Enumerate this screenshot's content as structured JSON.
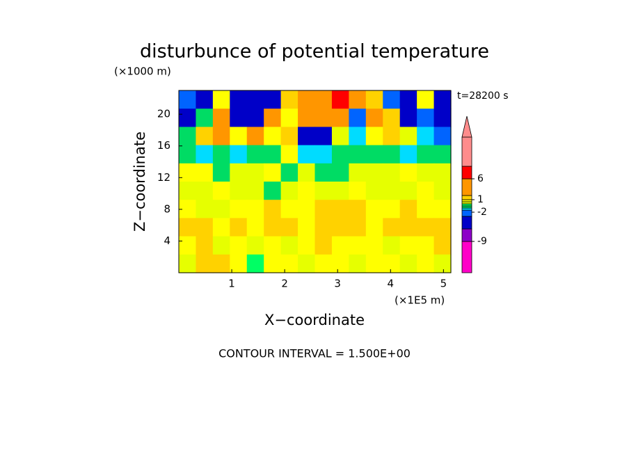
{
  "chart_data": {
    "type": "contour",
    "title": "disturbunce of potential temperature",
    "y_unit_label": "(×1000 m)",
    "x_unit_label": "(×1E5 m)",
    "x_label": "X−coordinate",
    "y_label": "Z−coordinate",
    "time_label": "t=28200 s",
    "footer": "CONTOUR INTERVAL = 1.500E+00",
    "xlim": [
      0,
      5.14
    ],
    "ylim": [
      0,
      23
    ],
    "xticks": [
      1,
      2,
      3,
      4,
      5
    ],
    "yticks": [
      4,
      8,
      12,
      16,
      20
    ],
    "z": [
      [
        -2,
        -4,
        0.7,
        -4,
        -6,
        -5,
        1,
        2,
        5,
        6,
        3,
        1,
        -3,
        -4,
        0.7,
        -4
      ],
      [
        -4,
        -1,
        2,
        -5,
        -4,
        2,
        0.7,
        3,
        5,
        4,
        -3,
        2,
        1,
        -4,
        -2,
        -6
      ],
      [
        -1,
        1,
        2,
        0.7,
        2,
        0.7,
        1,
        -4,
        -5,
        0.3,
        -1.2,
        0.7,
        1,
        0.3,
        -1.2,
        -2
      ],
      [
        -0.7,
        -1.2,
        -0.7,
        -1.2,
        -0.7,
        -0.7,
        0.7,
        -1.2,
        -1.2,
        -0.7,
        -0.7,
        -0.7,
        -0.7,
        -1.2,
        -0.7,
        -0.7
      ],
      [
        0.7,
        0.7,
        -0.7,
        0.3,
        0.3,
        0.7,
        -0.7,
        0.3,
        -0.7,
        -0.7,
        0.3,
        0.3,
        0.3,
        0.7,
        0.3,
        0.3
      ],
      [
        0.3,
        0.3,
        0.7,
        0.3,
        0.3,
        -0.7,
        0.3,
        0.7,
        0.3,
        0.3,
        0.7,
        0.3,
        0.3,
        0.3,
        0.7,
        0.3
      ],
      [
        0.7,
        0.3,
        0.3,
        0.7,
        0.7,
        1.5,
        0.7,
        0.7,
        1.5,
        1.5,
        1.5,
        0.7,
        0.7,
        1.5,
        0.7,
        0.7
      ],
      [
        1.5,
        1.5,
        0.7,
        1.5,
        0.7,
        1.5,
        1.5,
        0.7,
        1.5,
        1.5,
        1.5,
        0.7,
        1.5,
        1.5,
        1.5,
        1.5
      ],
      [
        0.7,
        1.5,
        0.3,
        0.7,
        0.3,
        0.7,
        0.3,
        0.7,
        1.5,
        0.7,
        0.7,
        0.7,
        0.3,
        0.7,
        0.7,
        1.5
      ],
      [
        0.3,
        1.5,
        1.5,
        0.7,
        -0.3,
        0.7,
        0.7,
        0.3,
        0.7,
        0.7,
        0.3,
        0.7,
        0.7,
        0.3,
        0.7,
        0.3
      ]
    ],
    "colorbar": {
      "levels": [
        -16.5,
        -9,
        -6,
        -3,
        -1.5,
        -1,
        -0.5,
        0,
        0.5,
        1,
        2,
        6,
        9,
        16
      ],
      "colors": [
        "#ff00c8",
        "#8c00c8",
        "#0000c8",
        "#0064ff",
        "#00dcff",
        "#00dc64",
        "#00ff64",
        "#e6ff00",
        "#ffff00",
        "#ffd200",
        "#ff9600",
        "#ff0000",
        "#ff8c8c"
      ],
      "extend_color": "#ff8c8c",
      "ticks": [
        -9,
        -2,
        1,
        6
      ]
    }
  }
}
